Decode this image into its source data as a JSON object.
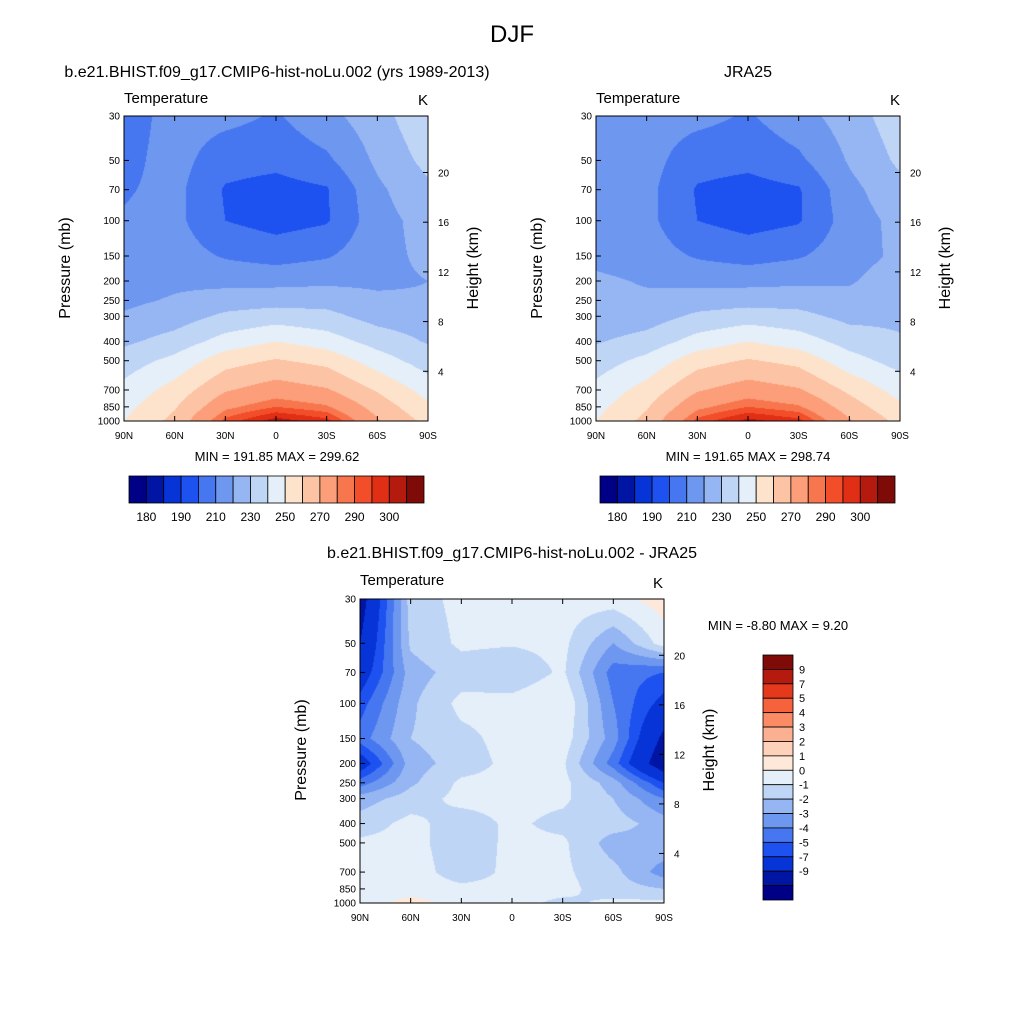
{
  "figure": {
    "title": "DJF"
  },
  "colors": {
    "abs_palette": [
      "#000086",
      "#0015A3",
      "#0734D6",
      "#1E52F0",
      "#4677F0",
      "#6E97F0",
      "#96B5F3",
      "#BFD5F6",
      "#E4EFF9",
      "#FEE3CC",
      "#FCC3A4",
      "#FB9E79",
      "#F8764E",
      "#F24E2A",
      "#E12F16",
      "#B51A0E",
      "#7E0B07"
    ],
    "diff_palette": [
      "#000086",
      "#0015A3",
      "#0734D6",
      "#1E52F0",
      "#4677F0",
      "#6E97F0",
      "#96B5F3",
      "#BFD5F6",
      "#E4EFF9",
      "#FEE8D9",
      "#FDD1BA",
      "#FCB092",
      "#FA8B64",
      "#F5623B",
      "#E5391D",
      "#B51A0E",
      "#7E0B07"
    ]
  },
  "panels": {
    "model": {
      "header": "b.e21.BHIST.f09_g17.CMIP6-hist-noLu.002 (yrs 1989-2013)",
      "variable": "Temperature",
      "units": "K",
      "minmax": "MIN = 191.85  MAX = 299.62"
    },
    "obs": {
      "header": "JRA25",
      "variable": "Temperature",
      "units": "K",
      "minmax": "MIN = 191.65  MAX = 298.74"
    },
    "diff": {
      "header": "b.e21.BHIST.f09_g17.CMIP6-hist-noLu.002 - JRA25",
      "variable": "Temperature",
      "units": "K",
      "minmax": "MIN =  -8.80  MAX =   9.20"
    }
  },
  "axes": {
    "ylabel": "Pressure (mb)",
    "y2label": "Height (km)",
    "x_ticks": [
      "90N",
      "60N",
      "30N",
      "0",
      "30S",
      "60S",
      "90S"
    ],
    "p_ticks": [
      "30",
      "50",
      "70",
      "100",
      "150",
      "200",
      "250",
      "300",
      "400",
      "500",
      "700",
      "850",
      "1000"
    ],
    "h_ticks": [
      "4",
      "8",
      "12",
      "16",
      "20"
    ]
  },
  "colorbars": {
    "abs_labels": [
      "180",
      "190",
      "210",
      "230",
      "250",
      "270",
      "290",
      "300"
    ],
    "diff_labels": [
      "9",
      "7",
      "5",
      "4",
      "3",
      "2",
      "1",
      "0",
      "-1",
      "-2",
      "-3",
      "-4",
      "-5",
      "-7",
      "-9"
    ]
  },
  "chart_data": [
    {
      "type": "heatmap",
      "title": "b.e21.BHIST.f09_g17.CMIP6-hist-noLu.002 (yrs 1989-2013)",
      "subtitle": "Temperature",
      "units": "K",
      "xlabel": "",
      "ylabel": "Pressure (mb)",
      "y2label": "Height (km)",
      "x": [
        "90N",
        "60N",
        "30N",
        "0",
        "30S",
        "60S",
        "90S"
      ],
      "y": [
        30,
        50,
        70,
        100,
        150,
        200,
        250,
        300,
        400,
        500,
        700,
        850,
        1000
      ],
      "y_scale": "log",
      "contour_levels": [
        180,
        185,
        190,
        200,
        210,
        220,
        230,
        240,
        250,
        260,
        270,
        280,
        285,
        290,
        295,
        300
      ],
      "colorbar_labels": [
        180,
        190,
        210,
        230,
        250,
        270,
        290,
        300
      ],
      "min": 191.85,
      "max": 299.62,
      "values": [
        [
          205,
          214,
          213,
          209,
          217,
          226,
          238
        ],
        [
          207,
          214,
          204,
          203,
          208,
          222,
          233
        ],
        [
          209,
          213,
          199,
          196,
          199,
          218,
          228
        ],
        [
          211,
          213,
          200,
          196,
          199,
          216,
          224
        ],
        [
          214,
          215,
          209,
          206,
          209,
          217,
          222
        ],
        [
          216,
          218,
          217,
          217,
          218,
          218,
          220
        ],
        [
          218,
          221,
          225,
          226,
          226,
          222,
          221
        ],
        [
          221,
          225,
          232,
          235,
          233,
          226,
          224
        ],
        [
          228,
          234,
          244,
          250,
          245,
          236,
          229
        ],
        [
          235,
          243,
          256,
          261,
          257,
          245,
          235
        ],
        [
          243,
          254,
          269,
          275,
          271,
          259,
          246
        ],
        [
          247,
          259,
          278,
          285,
          281,
          266,
          252
        ],
        [
          250,
          263,
          287,
          298,
          292,
          271,
          257
        ]
      ]
    },
    {
      "type": "heatmap",
      "title": "JRA25",
      "subtitle": "Temperature",
      "units": "K",
      "xlabel": "",
      "ylabel": "Pressure (mb)",
      "y2label": "Height (km)",
      "x": [
        "90N",
        "60N",
        "30N",
        "0",
        "30S",
        "60S",
        "90S"
      ],
      "y": [
        30,
        50,
        70,
        100,
        150,
        200,
        250,
        300,
        400,
        500,
        700,
        850,
        1000
      ],
      "y_scale": "log",
      "contour_levels": [
        180,
        185,
        190,
        200,
        210,
        220,
        230,
        240,
        250,
        260,
        270,
        280,
        285,
        290,
        295,
        300
      ],
      "colorbar_labels": [
        180,
        190,
        210,
        230,
        250,
        270,
        290,
        300
      ],
      "min": 191.65,
      "max": 298.74,
      "values": [
        [
          213,
          214,
          213,
          209,
          216,
          225,
          236
        ],
        [
          214,
          214,
          204,
          203,
          208,
          221,
          232
        ],
        [
          215,
          213,
          199,
          196,
          199,
          217,
          227
        ],
        [
          216,
          213,
          200,
          196,
          199,
          215,
          223
        ],
        [
          217,
          215,
          209,
          206,
          209,
          216,
          222
        ],
        [
          222,
          219,
          217,
          217,
          218,
          219,
          225
        ],
        [
          222,
          222,
          225,
          226,
          226,
          223,
          226
        ],
        [
          223,
          225,
          232,
          235,
          233,
          227,
          228
        ],
        [
          229,
          234,
          244,
          250,
          245,
          236,
          231
        ],
        [
          235,
          243,
          256,
          261,
          257,
          244,
          236
        ],
        [
          243,
          254,
          269,
          275,
          271,
          258,
          246
        ],
        [
          247,
          259,
          278,
          285,
          281,
          265,
          252
        ],
        [
          250,
          263,
          287,
          297,
          292,
          271,
          257
        ]
      ]
    },
    {
      "type": "heatmap",
      "title": "b.e21.BHIST.f09_g17.CMIP6-hist-noLu.002 - JRA25",
      "subtitle": "Temperature",
      "units": "K",
      "xlabel": "",
      "ylabel": "Pressure (mb)",
      "y2label": "Height (km)",
      "x": [
        "90N",
        "60N",
        "30N",
        "0",
        "30S",
        "60S",
        "90S"
      ],
      "y": [
        30,
        50,
        70,
        100,
        150,
        200,
        250,
        300,
        400,
        500,
        700,
        850,
        1000
      ],
      "y_scale": "log",
      "contour_levels": [
        -9,
        -7,
        -5,
        -4,
        -3,
        -2,
        -1,
        0,
        1,
        2,
        3,
        4,
        5,
        7,
        9
      ],
      "colorbar_labels": [
        9,
        7,
        5,
        4,
        3,
        2,
        1,
        0,
        -1,
        -2,
        -3,
        -4,
        -5,
        -7,
        -9
      ],
      "min": -8.8,
      "max": 9.2,
      "values": [
        [
          -8.0,
          -0.5,
          0.3,
          0.2,
          0.5,
          0.6,
          1.5
        ],
        [
          -7.0,
          -0.8,
          0.2,
          0.1,
          0.3,
          -2.0,
          0.5
        ],
        [
          -6.0,
          -1.5,
          -0.5,
          -0.8,
          0.2,
          -3.5,
          -4.0
        ],
        [
          -4.5,
          -1.2,
          0.3,
          0.4,
          1.0,
          -3.0,
          -5.5
        ],
        [
          -3.5,
          -1.0,
          -0.3,
          0.4,
          0.6,
          -2.5,
          -7.5
        ],
        [
          -6.0,
          -1.5,
          -0.5,
          0.3,
          0.2,
          -3.5,
          -8.5
        ],
        [
          -3.5,
          -1.2,
          0.2,
          0.3,
          0.3,
          -1.5,
          -5.0
        ],
        [
          -1.5,
          -0.5,
          0.3,
          0.3,
          0.2,
          -1.0,
          -3.0
        ],
        [
          -0.5,
          0.3,
          -0.5,
          0.2,
          -0.3,
          -0.5,
          -1.5
        ],
        [
          0.2,
          0.3,
          -0.5,
          0.2,
          0.2,
          -1.5,
          -1.2
        ],
        [
          0.3,
          0.4,
          -0.4,
          0.2,
          0.2,
          -0.7,
          -2.5
        ],
        [
          0.3,
          0.4,
          0.2,
          0.2,
          0.3,
          -0.5,
          -1.0
        ],
        [
          0.3,
          1.5,
          0.5,
          0.3,
          -0.2,
          0.2,
          0.3
        ]
      ]
    }
  ]
}
